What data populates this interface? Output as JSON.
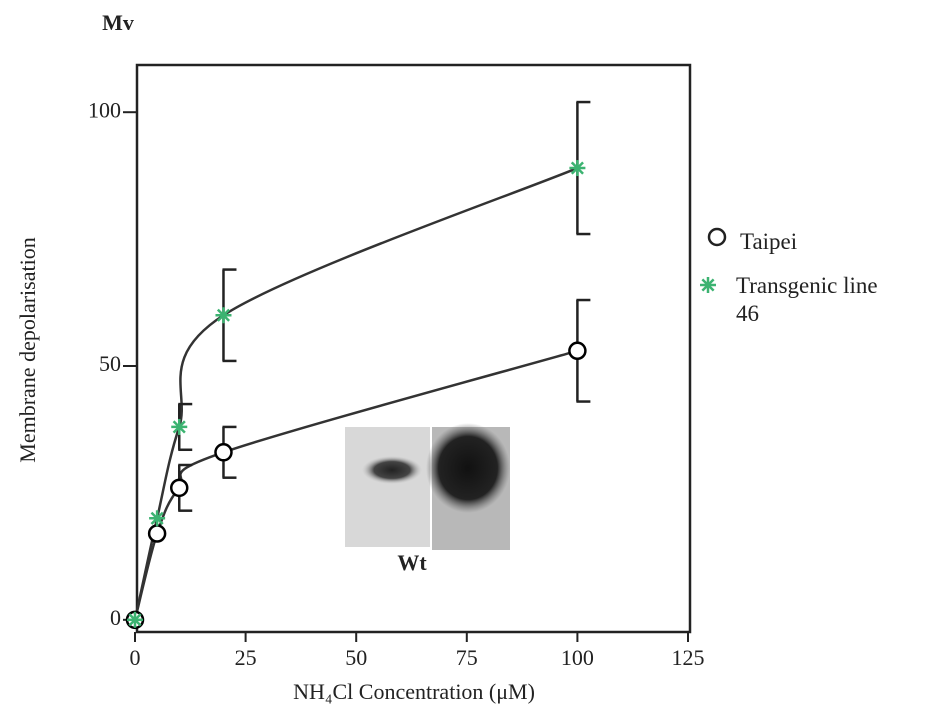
{
  "chart_data": {
    "type": "line",
    "unit_label": "Mv",
    "x_label": "NH₄Cl Concentration (μM)",
    "y_label": "Membrane depolarisation",
    "inset_label": "Wt",
    "xlim": [
      0,
      125
    ],
    "xticks": [
      0,
      25,
      50,
      75,
      100,
      125
    ],
    "ylim": [
      -2.4,
      109.3
    ],
    "yticks": [
      0,
      50,
      100
    ],
    "series": [
      {
        "name": "Taipei",
        "color": "#000000",
        "marker": "circle",
        "x": [
          0,
          5,
          10,
          20,
          100
        ],
        "values": [
          0,
          17,
          26,
          33,
          53
        ],
        "errors": [
          null,
          null,
          4.5,
          5,
          10
        ]
      },
      {
        "name": "Transgenic line 46",
        "color": "#3cb371",
        "marker": "asterisk",
        "x": [
          0,
          5,
          10,
          20,
          100
        ],
        "values": [
          0,
          20,
          38,
          60,
          89
        ],
        "errors": [
          null,
          null,
          4.5,
          9,
          13
        ]
      }
    ]
  }
}
